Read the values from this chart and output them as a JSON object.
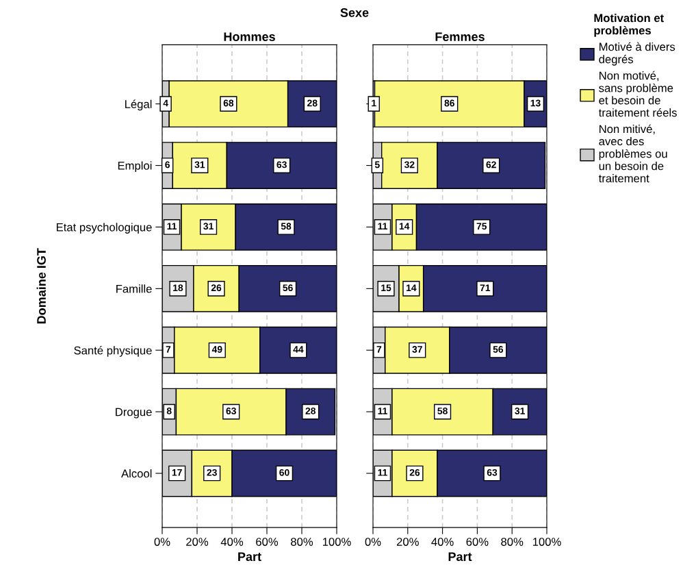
{
  "chart_data": [
    {
      "type": "bar",
      "orientation": "horizontal",
      "stacked": true,
      "title": "Hommes",
      "annotations": [
        "Sexe"
      ],
      "xlabel": "Part",
      "ylabel": "Domaine IGT",
      "categories": [
        "Légal",
        "Emploi",
        "Etat psychologique",
        "Famille",
        "Santé physique",
        "Drogue",
        "Alcool"
      ],
      "series": [
        {
          "color": "#cccccc",
          "values": [
            4,
            6,
            11,
            18,
            7,
            8,
            17
          ]
        },
        {
          "color": "#f8f67c",
          "values": [
            68,
            31,
            31,
            26,
            49,
            63,
            23
          ]
        },
        {
          "color": "#2b2d6e",
          "values": [
            28,
            63,
            58,
            56,
            44,
            28,
            60
          ]
        }
      ],
      "xlim": [
        0,
        100
      ],
      "xticks": [
        {
          "value": 0,
          "label": "0%"
        },
        {
          "value": 20,
          "label": "20%"
        },
        {
          "value": 40,
          "label": "40%"
        },
        {
          "value": 60,
          "label": "60%"
        },
        {
          "value": 80,
          "label": "80%"
        },
        {
          "value": 100,
          "label": "100%"
        }
      ],
      "grid": "x",
      "data_labels": true,
      "legend": false
    },
    {
      "type": "bar",
      "orientation": "horizontal",
      "stacked": true,
      "title": "Femmes",
      "xlabel": "Part",
      "legend_title": "Motivation et\nproblèmes",
      "categories": [
        null,
        null,
        null,
        null,
        null,
        null,
        null
      ],
      "series": [
        {
          "name": "Non mitivé,\navec des\nproblèmes ou\nun besoin de\ntraitement",
          "color": "#cccccc",
          "values": [
            1,
            5,
            11,
            15,
            7,
            11,
            11
          ]
        },
        {
          "name": "Non motivé,\nsans problème\net besoin de\ntraitement réels",
          "color": "#f8f67c",
          "values": [
            86,
            32,
            14,
            14,
            37,
            58,
            26
          ]
        },
        {
          "name": "Motivé à divers\ndegrés",
          "color": "#2b2d6e",
          "values": [
            13,
            62,
            75,
            71,
            56,
            31,
            63
          ]
        }
      ],
      "xlim": [
        0,
        100
      ],
      "xticks": [
        {
          "value": 0,
          "label": "0%"
        },
        {
          "value": 20,
          "label": "20%"
        },
        {
          "value": 40,
          "label": "40%"
        },
        {
          "value": 60,
          "label": "60%"
        },
        {
          "value": 80,
          "label": "80%"
        },
        {
          "value": 100,
          "label": "100%"
        }
      ],
      "grid": "x",
      "data_labels": true,
      "legend": "right"
    }
  ]
}
